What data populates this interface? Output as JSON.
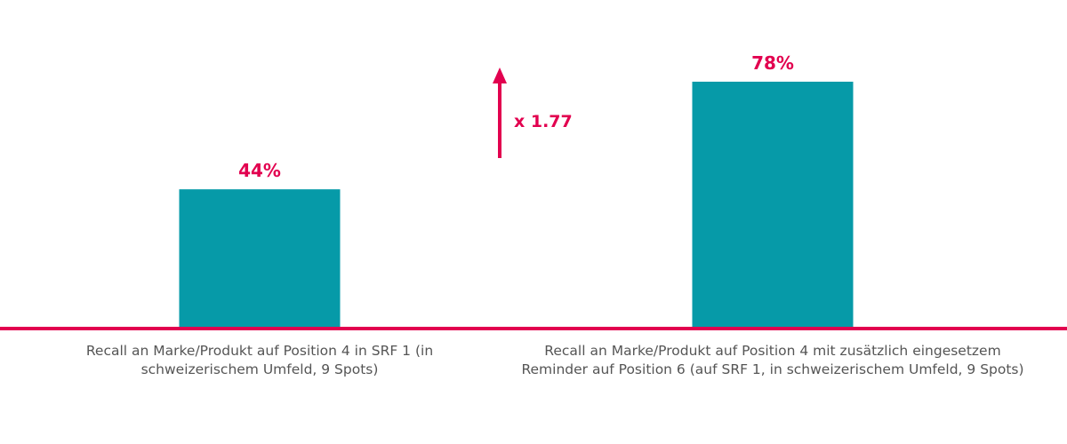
{
  "chart_data": {
    "type": "bar",
    "categories": [
      "Recall an Marke/Produkt auf Position 4 in SRF 1 (in schweizerischem Umfeld, 9 Spots)",
      "Recall an Marke/Produkt auf Position 4 mit zusätzlich eingesetzem Reminder auf Position 6  (auf SRF 1, in schweizerischem Umfeld, 9 Spots)"
    ],
    "values": [
      44,
      78
    ],
    "value_labels": [
      "44%",
      "78%"
    ],
    "ylim": [
      0,
      100
    ],
    "grid": false,
    "annotation": {
      "text": "x 1.77",
      "type": "up-arrow"
    },
    "colors": {
      "bar": "#069aa8",
      "accent": "#e2004f",
      "label_text": "#555555"
    }
  }
}
